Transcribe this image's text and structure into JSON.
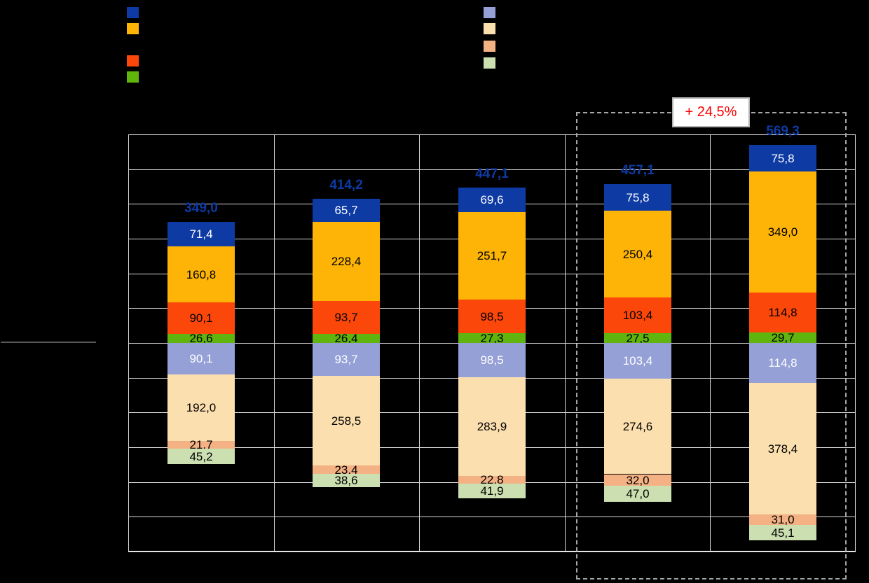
{
  "annotation": {
    "label": "+ 24,5%",
    "color": "#ff0000"
  },
  "legend": {
    "left": [
      {
        "name": "dark-blue",
        "color": "#0d3aa3"
      },
      {
        "name": "amber",
        "color": "#fdb406"
      },
      {
        "name": "orange-red",
        "color": "#fc470b"
      },
      {
        "name": "green",
        "color": "#5fb40e"
      }
    ],
    "right": [
      {
        "name": "periwinkle",
        "color": "#95a0d6"
      },
      {
        "name": "tan",
        "color": "#fcdfae"
      },
      {
        "name": "salmon",
        "color": "#f4b183"
      },
      {
        "name": "light-green",
        "color": "#cbdfb0"
      }
    ]
  },
  "chart_data": {
    "type": "bar",
    "variant": "mirrored-stacked-column",
    "categories": [
      "",
      "",
      "",
      "",
      ""
    ],
    "grid": true,
    "ylim": [
      -600,
      600
    ],
    "gridline_step": 100,
    "totals": [
      349.0,
      414.2,
      447.1,
      457.1,
      569.3
    ],
    "totals_labels": [
      "349,0",
      "414,2",
      "447,1",
      "457,1",
      "569,3"
    ],
    "totals_color": "#0d3aa3",
    "upper_series": [
      {
        "name": "dark-blue",
        "color": "#0d3aa3",
        "label_color": "#ffffff",
        "values": [
          71.4,
          65.7,
          69.6,
          75.8,
          75.8
        ],
        "labels": [
          "71,4",
          "65,7",
          "69,6",
          "75,8",
          "75,8"
        ]
      },
      {
        "name": "amber",
        "color": "#fdb406",
        "label_color": "#000000",
        "values": [
          160.8,
          228.4,
          251.7,
          250.4,
          349.0
        ],
        "labels": [
          "160,8",
          "228,4",
          "251,7",
          "250,4",
          "349,0"
        ]
      },
      {
        "name": "orange-red",
        "color": "#fc470b",
        "label_color": "#000000",
        "values": [
          90.1,
          93.7,
          98.5,
          103.4,
          114.8
        ],
        "labels": [
          "90,1",
          "93,7",
          "98,5",
          "103,4",
          "114,8"
        ]
      },
      {
        "name": "green",
        "color": "#5fb40e",
        "label_color": "#000000",
        "values": [
          26.6,
          26.4,
          27.3,
          27.5,
          29.7
        ],
        "labels": [
          "26,6",
          "26,4",
          "27,3",
          "27,5",
          "29,7"
        ]
      }
    ],
    "lower_series": [
      {
        "name": "periwinkle",
        "color": "#95a0d6",
        "label_color": "#ffffff",
        "values": [
          90.1,
          93.7,
          98.5,
          103.4,
          114.8
        ],
        "labels": [
          "90,1",
          "93,7",
          "98,5",
          "103,4",
          "114,8"
        ]
      },
      {
        "name": "tan",
        "color": "#fcdfae",
        "label_color": "#000000",
        "values": [
          192.0,
          258.5,
          283.9,
          274.6,
          378.4
        ],
        "labels": [
          "192,0",
          "258,5",
          "283,9",
          "274,6",
          "378,4"
        ]
      },
      {
        "name": "salmon",
        "color": "#f4b183",
        "label_color": "#000000",
        "values": [
          21.7,
          23.4,
          22.8,
          32.0,
          31.0
        ],
        "labels": [
          "21,7",
          "23,4",
          "22,8",
          "32,0",
          "31,0"
        ]
      },
      {
        "name": "light-green",
        "color": "#cbdfb0",
        "label_color": "#000000",
        "values": [
          45.2,
          38.6,
          41.9,
          47.0,
          45.1
        ],
        "labels": [
          "45,2",
          "38,6",
          "41,9",
          "47,0",
          "45,1"
        ]
      }
    ],
    "highlight": {
      "bars": [
        3,
        4
      ],
      "growth_label": "+ 24,5%"
    }
  }
}
